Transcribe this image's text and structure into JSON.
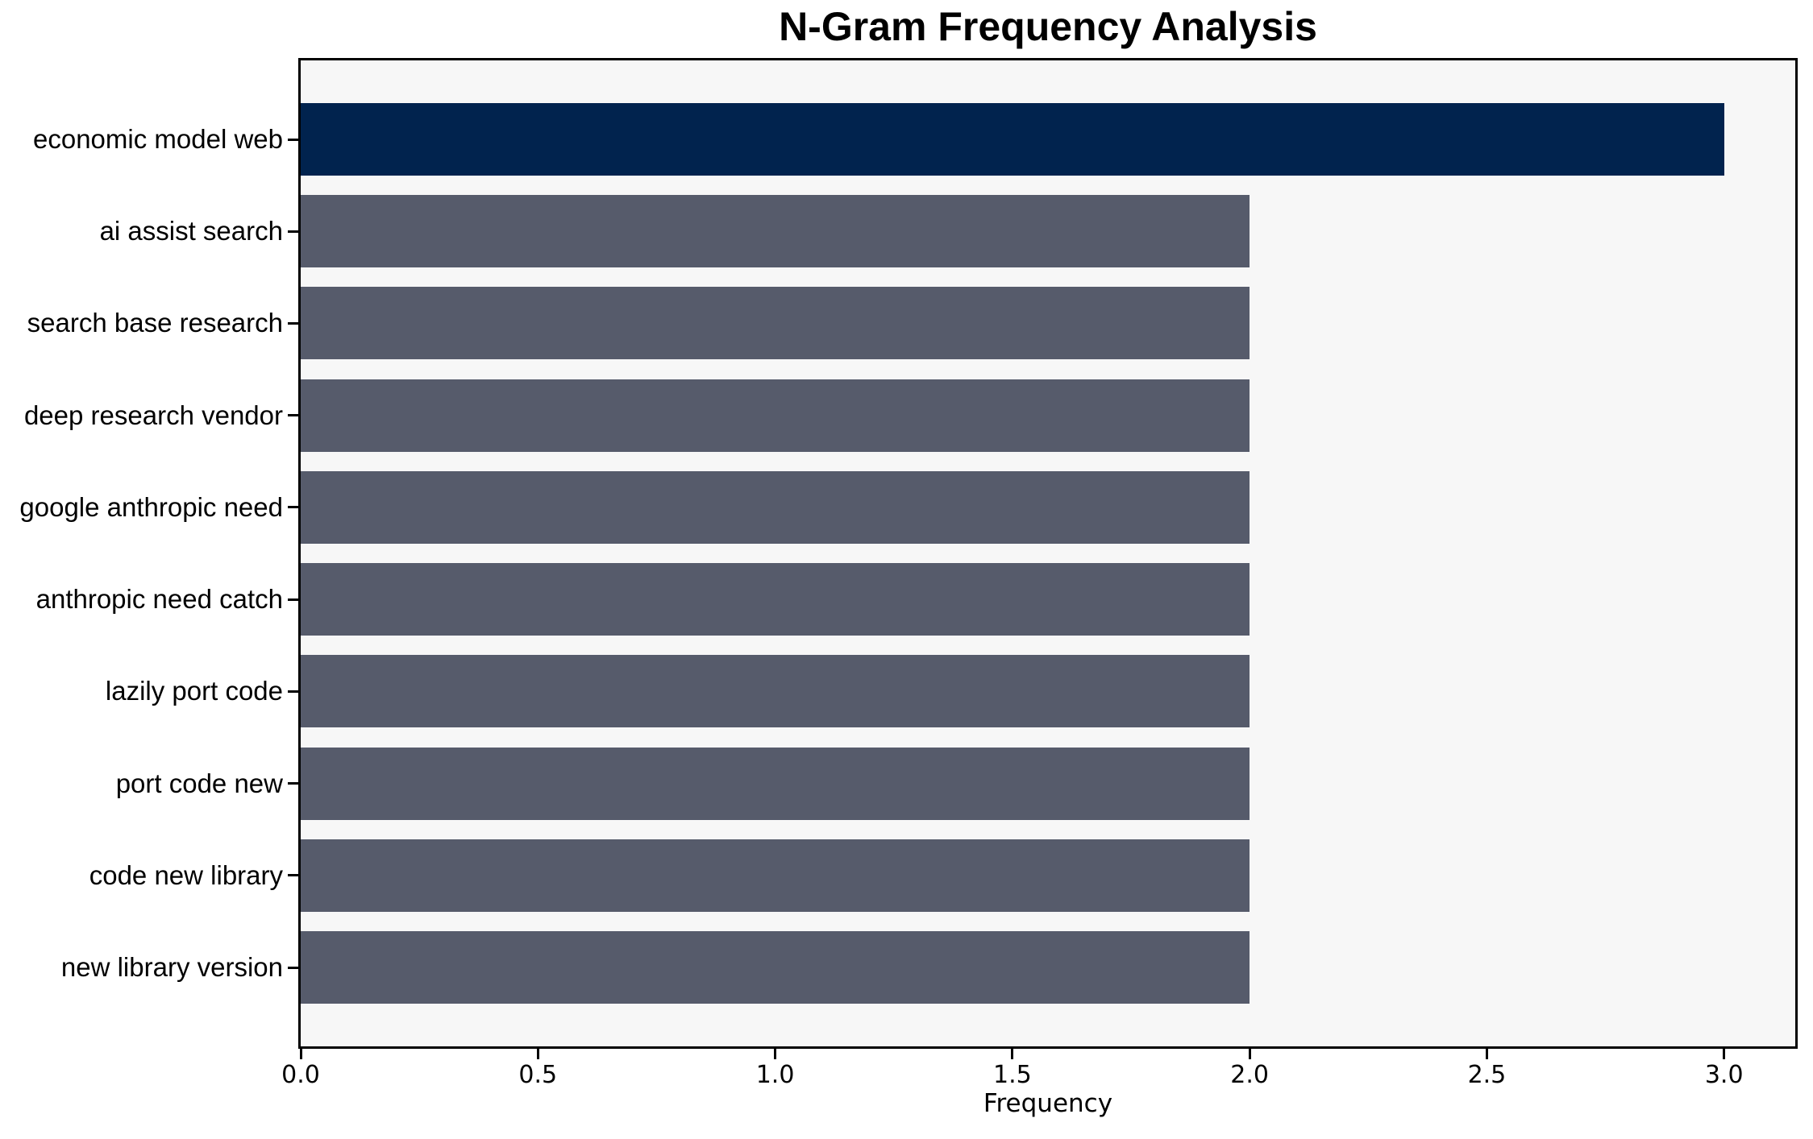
{
  "chart_data": {
    "type": "bar",
    "orientation": "horizontal",
    "title": "N-Gram Frequency Analysis",
    "xlabel": "Frequency",
    "ylabel": "",
    "categories": [
      "economic model web",
      "ai assist search",
      "search base research",
      "deep research vendor",
      "google anthropic need",
      "anthropic need catch",
      "lazily port code",
      "port code new",
      "code new library",
      "new library version"
    ],
    "values": [
      3,
      2,
      2,
      2,
      2,
      2,
      2,
      2,
      2,
      2
    ],
    "xlim": [
      0,
      3.15
    ],
    "x_ticks": [
      0.0,
      0.5,
      1.0,
      1.5,
      2.0,
      2.5,
      3.0
    ],
    "x_tick_labels": [
      "0.0",
      "0.5",
      "1.0",
      "1.5",
      "2.0",
      "2.5",
      "3.0"
    ],
    "highlight_index": 0,
    "colors": {
      "highlight_bar": "#01234E",
      "default_bar": "#565B6B",
      "plot_background": "#F7F7F7",
      "figure_background": "#FFFFFF",
      "axis": "#000000",
      "text": "#000000"
    },
    "grid": false,
    "legend": null
  }
}
